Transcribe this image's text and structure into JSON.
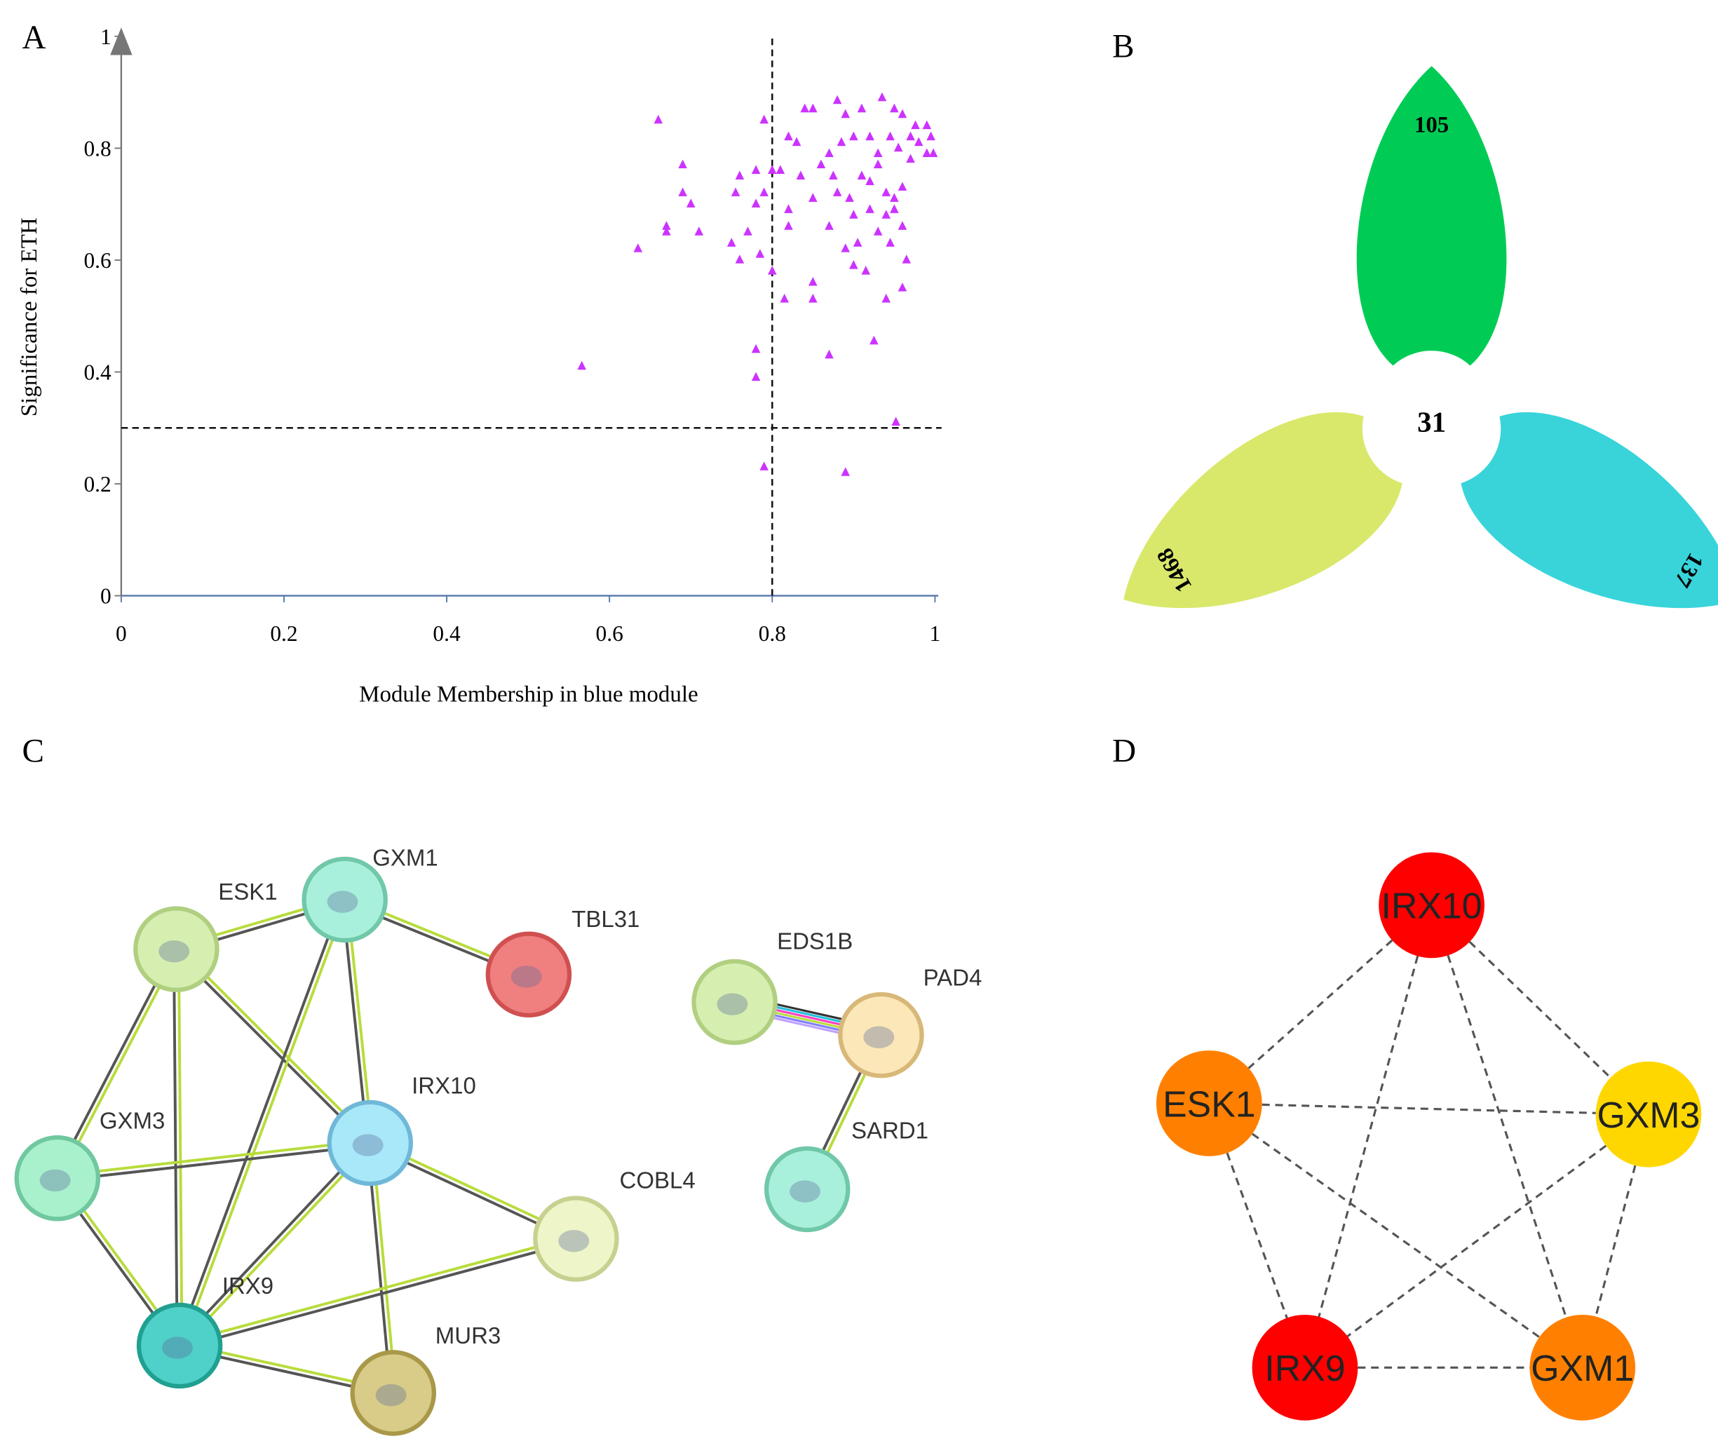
{
  "panels": [
    "A",
    "B",
    "C",
    "D"
  ],
  "chart_data": {
    "type": "scatter",
    "xlabel": "Module Membership in blue module",
    "ylabel": "Significance for ETH",
    "color": "#cc33ff",
    "x": [
      0.66,
      0.566,
      0.635,
      0.69,
      0.69,
      0.7,
      0.67,
      0.67,
      0.71,
      0.75,
      0.755,
      0.76,
      0.76,
      0.77,
      0.78,
      0.78,
      0.785,
      0.79,
      0.79,
      0.78,
      0.78,
      0.79,
      0.8,
      0.8,
      0.81,
      0.815,
      0.82,
      0.82,
      0.83,
      0.82,
      0.835,
      0.84,
      0.85,
      0.85,
      0.85,
      0.85,
      0.86,
      0.87,
      0.87,
      0.875,
      0.88,
      0.885,
      0.89,
      0.89,
      0.895,
      0.9,
      0.9,
      0.905,
      0.91,
      0.91,
      0.915,
      0.92,
      0.92,
      0.925,
      0.93,
      0.93,
      0.935,
      0.94,
      0.94,
      0.945,
      0.945,
      0.95,
      0.95,
      0.952,
      0.955,
      0.96,
      0.96,
      0.96,
      0.965,
      0.97,
      0.97,
      0.976,
      0.98,
      0.99,
      0.995,
      0.99,
      0.998,
      0.89,
      0.92,
      0.94,
      0.95,
      0.96,
      0.93,
      0.9,
      0.87,
      0.88
    ],
    "values": [
      0.85,
      0.41,
      0.62,
      0.77,
      0.72,
      0.7,
      0.66,
      0.65,
      0.65,
      0.63,
      0.72,
      0.75,
      0.6,
      0.65,
      0.76,
      0.7,
      0.61,
      0.72,
      0.85,
      0.44,
      0.39,
      0.23,
      0.76,
      0.58,
      0.76,
      0.53,
      0.66,
      0.82,
      0.81,
      0.69,
      0.75,
      0.87,
      0.87,
      0.71,
      0.53,
      0.56,
      0.77,
      0.43,
      0.66,
      0.75,
      0.885,
      0.81,
      0.86,
      0.62,
      0.71,
      0.59,
      0.82,
      0.63,
      0.87,
      0.75,
      0.58,
      0.69,
      0.82,
      0.455,
      0.77,
      0.65,
      0.89,
      0.72,
      0.53,
      0.82,
      0.63,
      0.69,
      0.87,
      0.31,
      0.8,
      0.73,
      0.55,
      0.86,
      0.6,
      0.78,
      0.82,
      0.84,
      0.81,
      0.84,
      0.82,
      0.79,
      0.79,
      0.22,
      0.74,
      0.68,
      0.71,
      0.66,
      0.79,
      0.68,
      0.79,
      0.72
    ],
    "xlim": [
      0,
      1
    ],
    "ylim": [
      0,
      1
    ],
    "xticks": [
      0,
      0.2,
      0.4,
      0.6,
      0.8,
      1
    ],
    "yticks": [
      0,
      0.2,
      0.4,
      0.6,
      0.8,
      1
    ],
    "reference_lines": [
      {
        "axis": "x",
        "value": 0.8
      },
      {
        "axis": "y",
        "value": 0.3
      }
    ]
  },
  "venn": {
    "sets": [
      {
        "value": 105,
        "color": "#00cc55"
      },
      {
        "value": 137,
        "color": "#38d4da"
      },
      {
        "value": 1468,
        "color": "#d9e86a"
      }
    ],
    "intersection": 31
  },
  "network_c": {
    "nodes": [
      {
        "label": "ESK1",
        "color": "#d6efb0"
      },
      {
        "label": "GXM1",
        "color": "#a9f0dc"
      },
      {
        "label": "TBL31",
        "color": "#f08080"
      },
      {
        "label": "IRX10",
        "color": "#a8e8f8"
      },
      {
        "label": "GXM3",
        "color": "#a9f0cc"
      },
      {
        "label": "COBL4",
        "color": "#eef5c8"
      },
      {
        "label": "IRX9",
        "color": "#4fd0c8"
      },
      {
        "label": "MUR3",
        "color": "#d8cc88"
      },
      {
        "label": "EDS1B",
        "color": "#d6efb0"
      },
      {
        "label": "PAD4",
        "color": "#fbe7b8"
      },
      {
        "label": "SARD1",
        "color": "#a9f0dc"
      }
    ]
  },
  "network_d": {
    "nodes": [
      {
        "label": "IRX10",
        "color": "#ff0000"
      },
      {
        "label": "ESK1",
        "color": "#ff8000"
      },
      {
        "label": "GXM3",
        "color": "#ffd700"
      },
      {
        "label": "IRX9",
        "color": "#ff0000"
      },
      {
        "label": "GXM1",
        "color": "#ff8000"
      }
    ]
  }
}
